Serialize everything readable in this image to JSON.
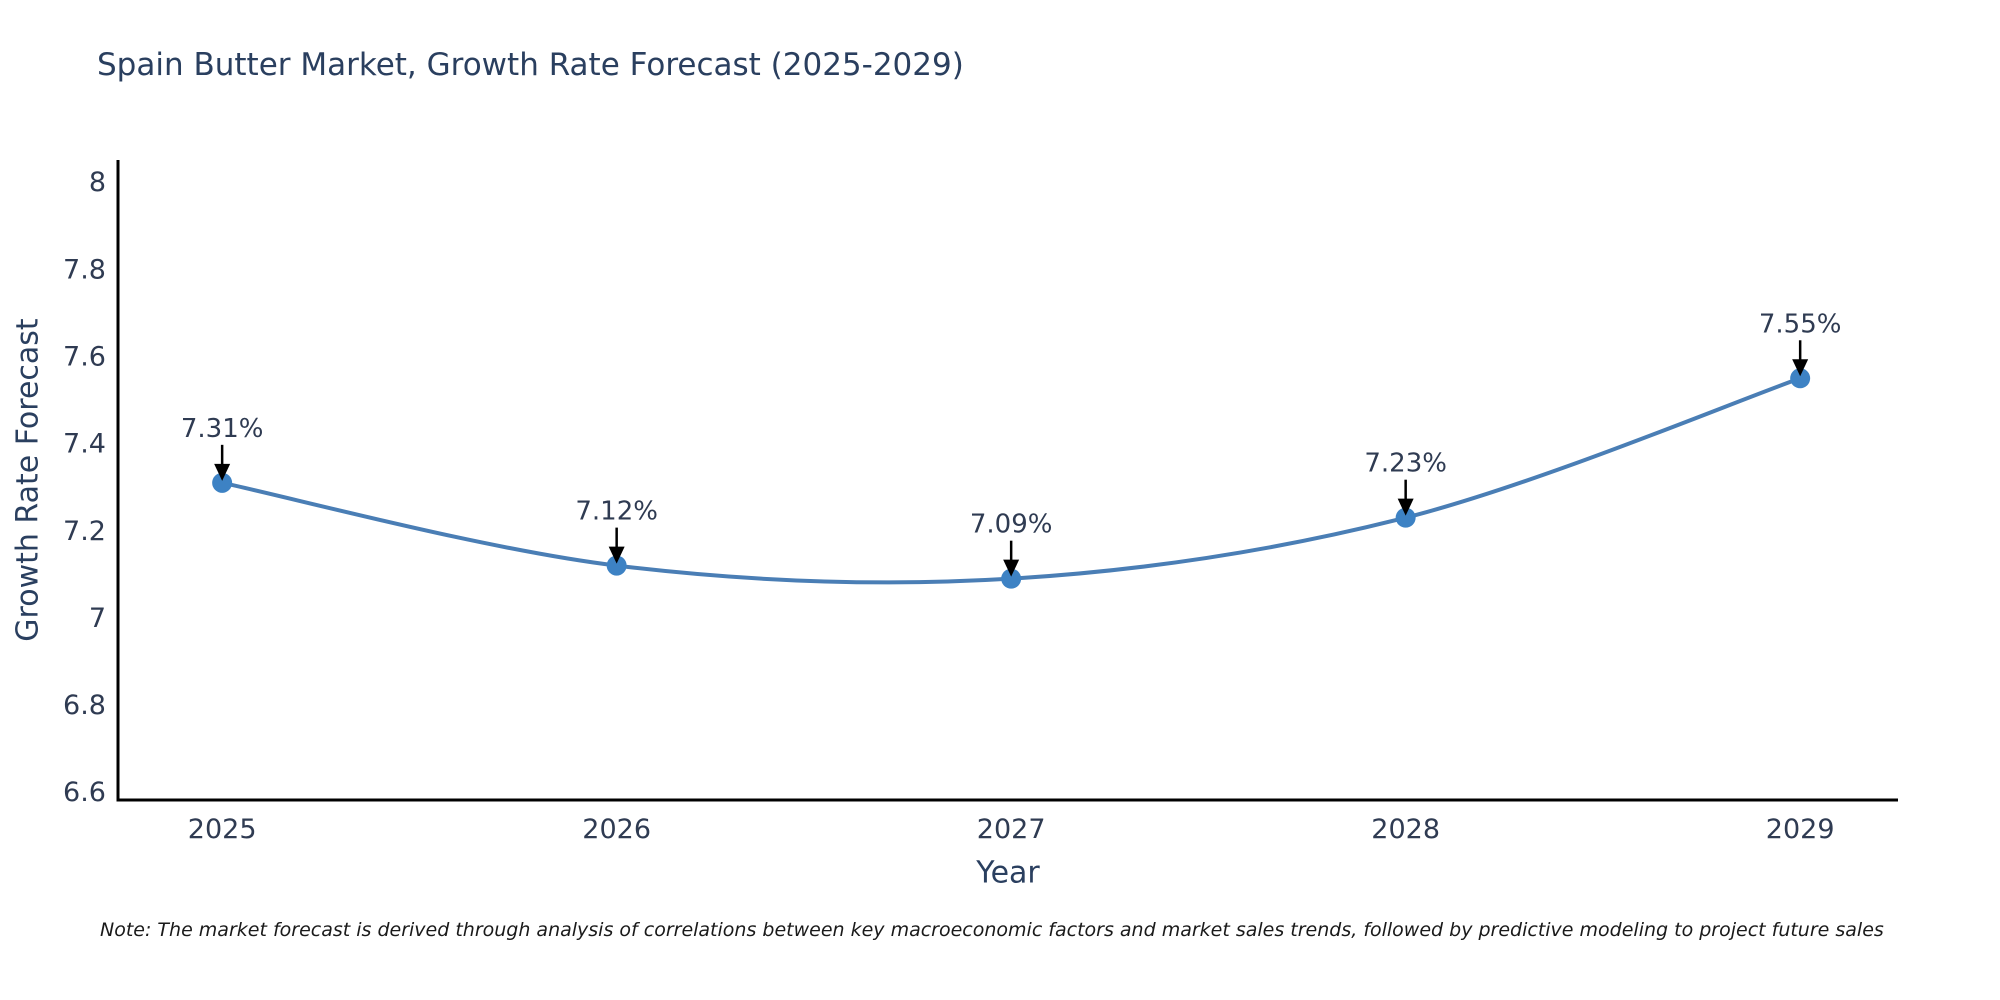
{
  "page": {
    "footnote": "Note: The market forecast is derived through analysis of correlations between key macroeconomic factors and market sales trends, followed by predictive modeling to project future sales"
  },
  "chart_data": {
    "type": "line",
    "line_shape": "spline",
    "title": "Spain Butter Market, Growth Rate Forecast (2025-2029)",
    "xlabel": "Year",
    "ylabel": "Growth Rate Forecast",
    "x": [
      2025,
      2026,
      2027,
      2028,
      2029
    ],
    "y": [
      7.31,
      7.12,
      7.09,
      7.23,
      7.55
    ],
    "point_labels": [
      "7.31%",
      "7.12%",
      "7.09%",
      "7.23%",
      "7.55%"
    ],
    "xticks": [
      2025,
      2026,
      2027,
      2028,
      2029
    ],
    "xtick_labels": [
      "2025",
      "2026",
      "2027",
      "2028",
      "2029"
    ],
    "yticks": [
      6.6,
      6.8,
      7.0,
      7.2,
      7.4,
      7.6,
      7.8,
      8.0
    ],
    "ytick_labels": [
      "6.6",
      "6.8",
      "7",
      "7.2",
      "7.4",
      "7.6",
      "7.8",
      "8"
    ],
    "xlim": [
      2024.736,
      2029.248
    ],
    "ylim": [
      6.582,
      8.051
    ],
    "grid": false,
    "legend": false,
    "annotations_have_arrows": true,
    "colors": {
      "line": "#4a7eb5",
      "marker": "#3d82c4",
      "axis": "#000000",
      "tick_label": "#2f3b52",
      "annotation_text": "#2f3b52",
      "annotation_arrow": "#000000",
      "title": "#2a3f5f",
      "background": "#ffffff"
    }
  }
}
